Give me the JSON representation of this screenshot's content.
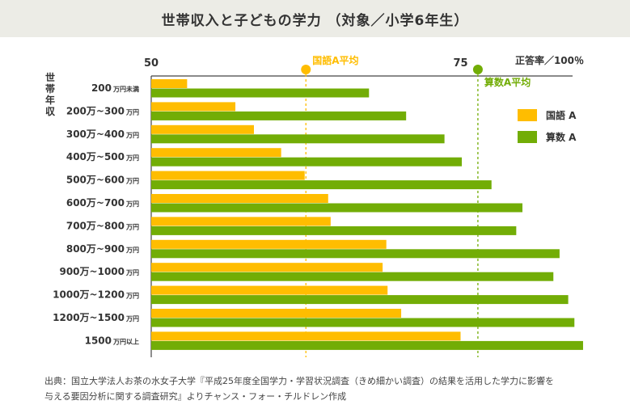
{
  "title": "世帯収入と子どもの学力 （対象／小学6年生）",
  "source_line1": "出典：国立大学法人お茶の水女子大学『平成25年度全国学力・学習状況調査（きめ細かい調査）の結果を活用した学力に影響を",
  "source_line2": "与える要因分析に関する調査研究』よりチャンス・フォー・チルドレン作成",
  "colors": {
    "kokugo": "#ffbd00",
    "sansu": "#72ad06",
    "axis": "#444444"
  },
  "chart_data": {
    "type": "bar",
    "orientation": "horizontal",
    "y_axis_label": "世帯年収",
    "x_axis_label": "正答率／100％",
    "xlim": [
      50,
      90
    ],
    "x_ticks": [
      {
        "value": 50,
        "label": "50"
      },
      {
        "value": 75,
        "label": "75"
      }
    ],
    "categories": [
      {
        "main": "200",
        "sub": "万円未満"
      },
      {
        "main": "200万~300",
        "sub": "万円"
      },
      {
        "main": "300万~400",
        "sub": "万円"
      },
      {
        "main": "400万~500",
        "sub": "万円"
      },
      {
        "main": "500万~600",
        "sub": "万円"
      },
      {
        "main": "600万~700",
        "sub": "万円"
      },
      {
        "main": "700万~800",
        "sub": "万円"
      },
      {
        "main": "800万~900",
        "sub": "万円"
      },
      {
        "main": "900万~1000",
        "sub": "万円"
      },
      {
        "main": "1000万~1200",
        "sub": "万円"
      },
      {
        "main": "1200万~1500",
        "sub": "万円"
      },
      {
        "main": "1500",
        "sub": "万円以上"
      }
    ],
    "series": [
      {
        "name": "国語 A",
        "color": "#ffbd00",
        "values": [
          52.9,
          56.8,
          58.3,
          60.5,
          62.4,
          64.3,
          64.5,
          69.0,
          68.7,
          69.1,
          70.2,
          75.0
        ]
      },
      {
        "name": "算数 A",
        "color": "#72ad06",
        "values": [
          67.6,
          70.6,
          73.7,
          75.1,
          77.5,
          80.0,
          79.5,
          83.0,
          82.5,
          83.7,
          84.2,
          84.9
        ]
      }
    ],
    "reference_lines": [
      {
        "label": "国語A平均",
        "value": 62.5,
        "color": "#ffbd00"
      },
      {
        "label": "算数A平均",
        "value": 76.4,
        "color": "#72ad06"
      }
    ]
  }
}
